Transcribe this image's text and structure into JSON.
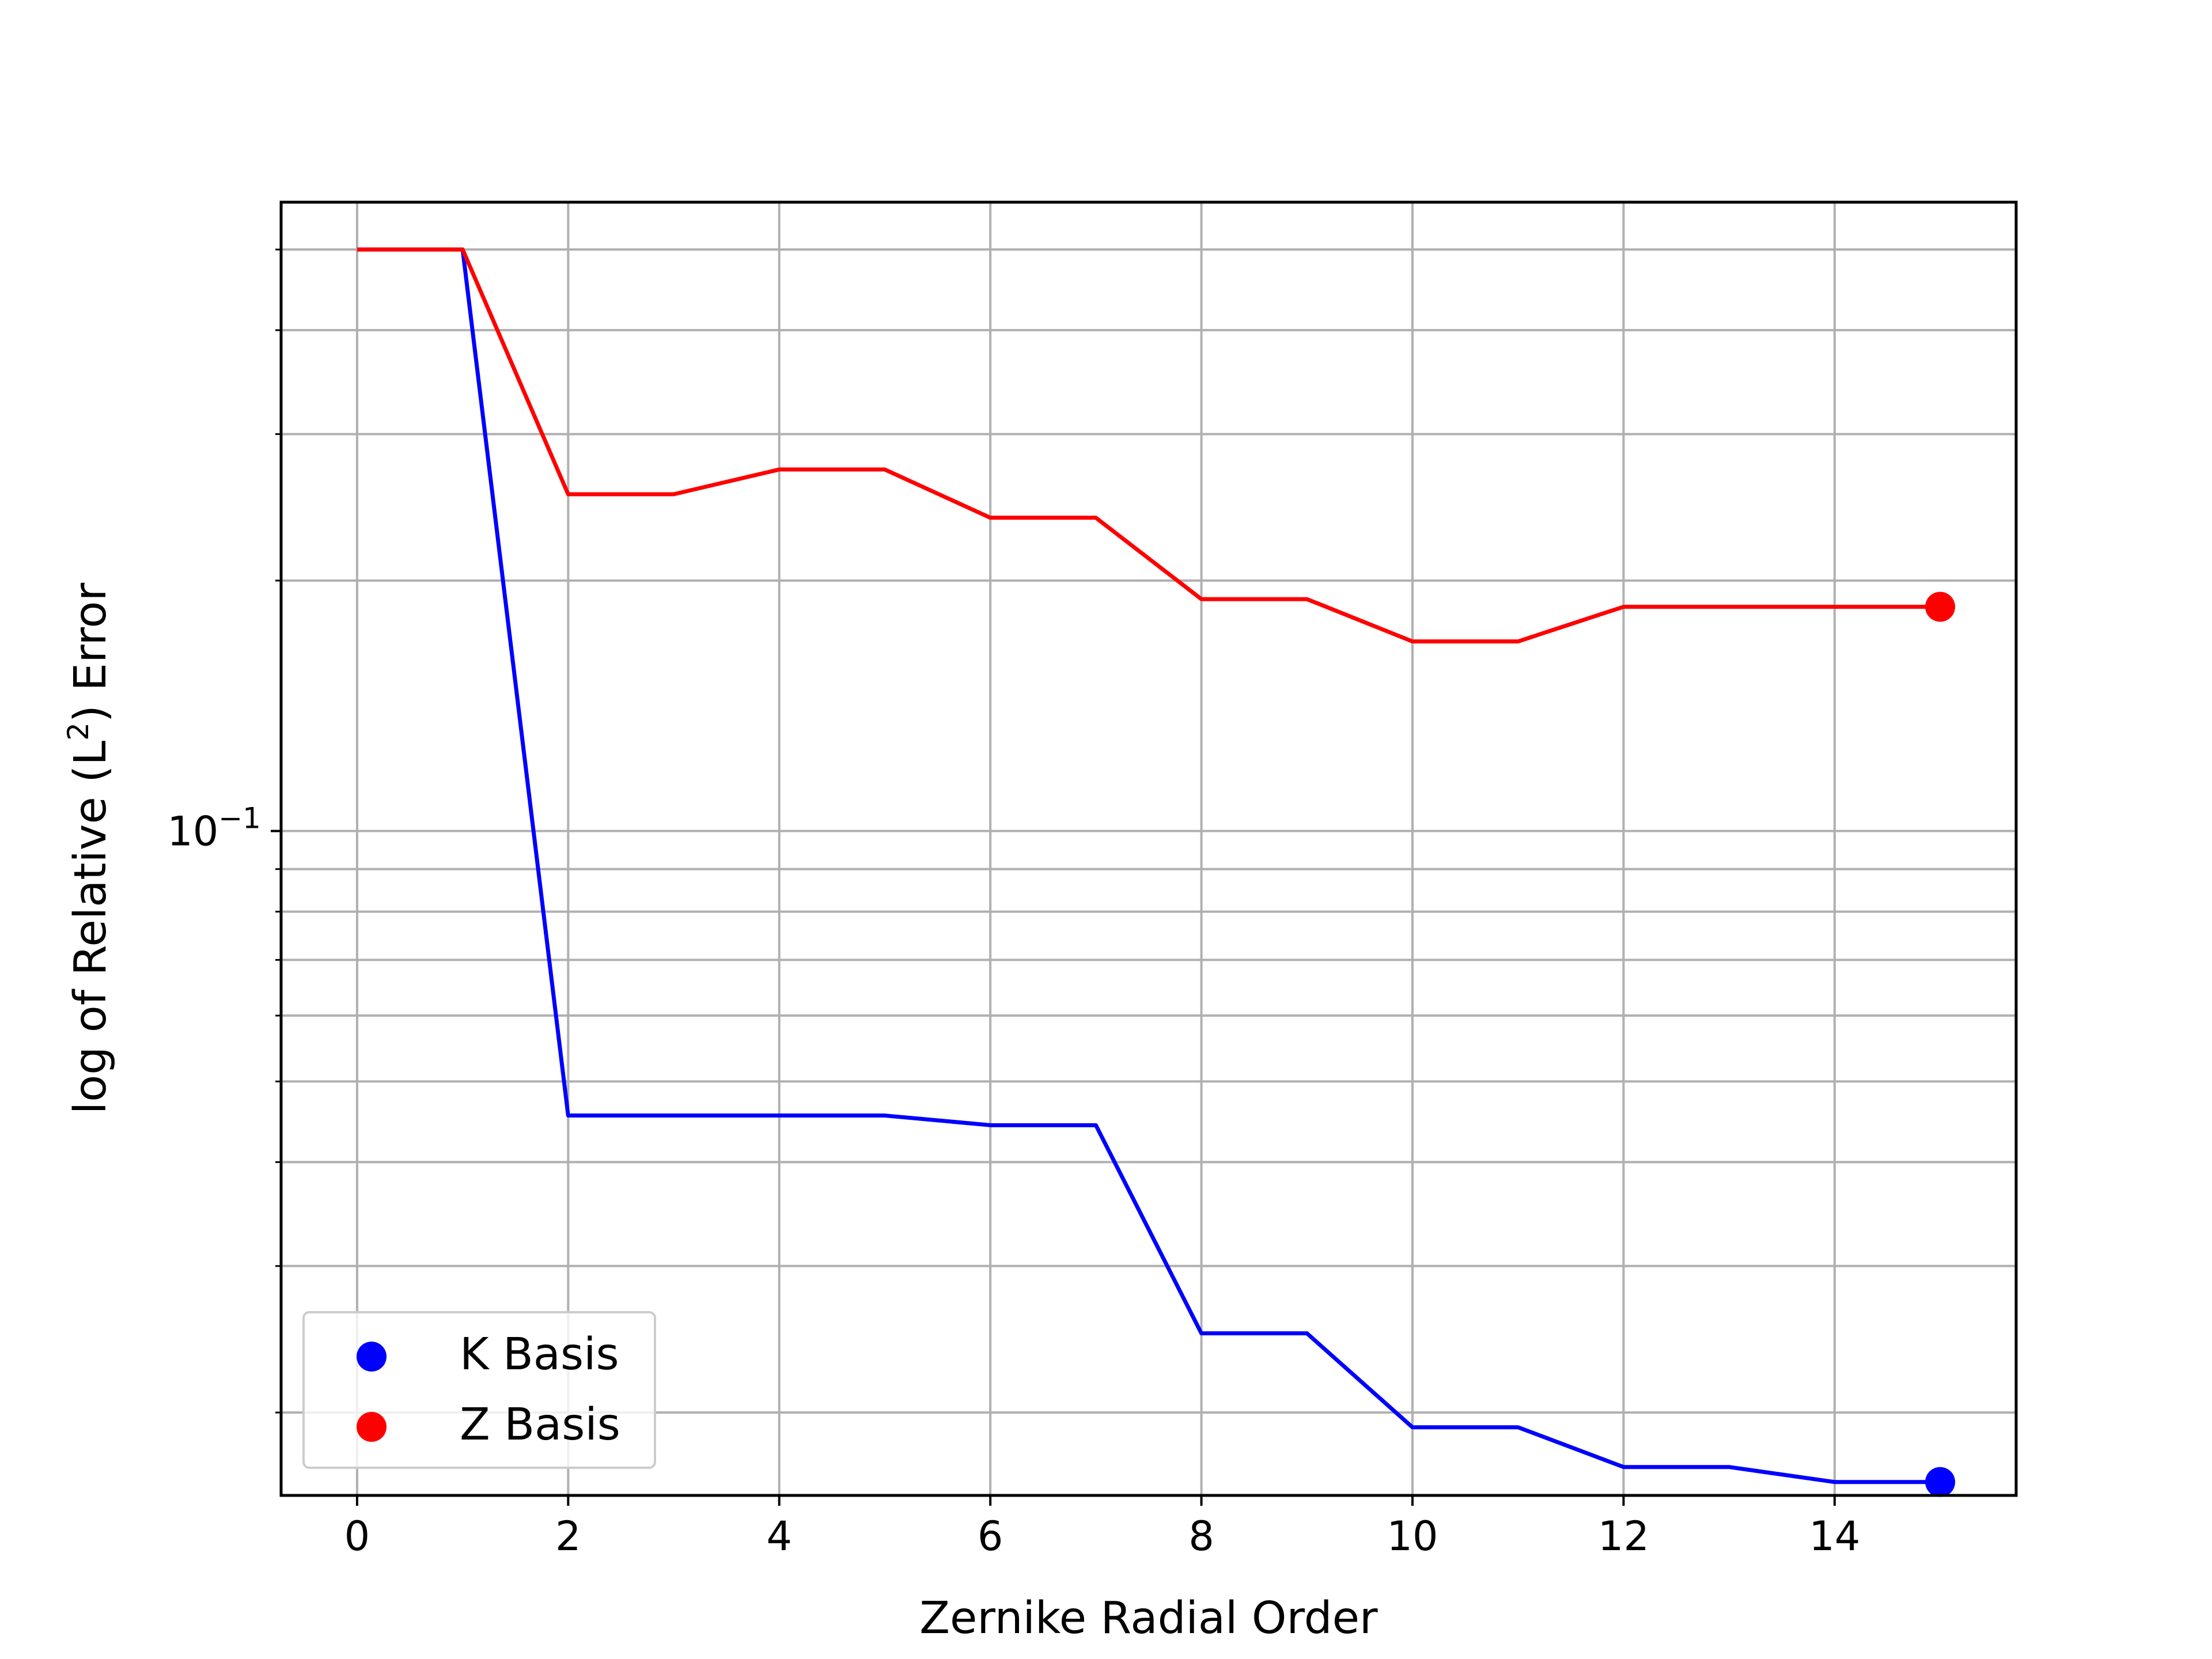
{
  "chart_data": {
    "type": "line",
    "title": "",
    "xlabel": "Zernike Radial Order",
    "ylabel": "log of Relative (L²) Error",
    "ylabel_parts": {
      "before": "log of Relative (L",
      "sup": "2",
      "after": ") Error"
    },
    "yscale": "log",
    "xlim": [
      -0.72,
      15.72
    ],
    "ylim": [
      0.0159,
      0.57
    ],
    "xticks": [
      0,
      2,
      4,
      6,
      8,
      10,
      12,
      14
    ],
    "xtick_labels": [
      "0",
      "2",
      "4",
      "6",
      "8",
      "10",
      "12",
      "14"
    ],
    "ytick_major": {
      "value": 0.1,
      "base": "10",
      "exponent": "−1"
    },
    "ytick_minor": [
      0.02,
      0.03,
      0.04,
      0.05,
      0.06,
      0.07,
      0.08,
      0.09,
      0.2,
      0.3,
      0.4,
      0.5
    ],
    "grid": true,
    "legend_position": "lower-left",
    "x": [
      0,
      1,
      2,
      3,
      4,
      5,
      6,
      7,
      8,
      9,
      10,
      11,
      12,
      13,
      14,
      15
    ],
    "series": [
      {
        "name": "K Basis",
        "color": "#0000ff",
        "values": [
          0.5,
          0.5,
          0.0455,
          0.0455,
          0.0455,
          0.0455,
          0.0443,
          0.0443,
          0.0249,
          0.0249,
          0.0192,
          0.0192,
          0.0172,
          0.0172,
          0.0165,
          0.0165
        ],
        "end_marker": true
      },
      {
        "name": "Z Basis",
        "color": "#ff0000",
        "values": [
          0.5,
          0.5,
          0.254,
          0.254,
          0.272,
          0.272,
          0.238,
          0.238,
          0.19,
          0.19,
          0.169,
          0.169,
          0.186,
          0.186,
          0.186,
          0.186
        ],
        "end_marker": true
      }
    ]
  }
}
